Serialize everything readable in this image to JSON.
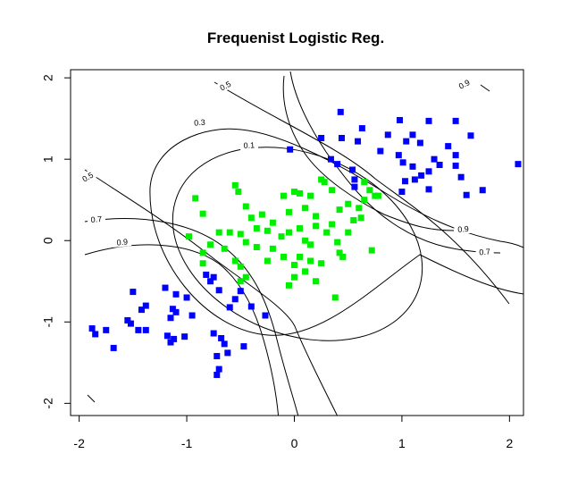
{
  "chart_data": {
    "type": "scatter",
    "title": "Frequenist Logistic Reg.",
    "xlabel": "",
    "ylabel": "",
    "xlim": [
      -2.08,
      2.13
    ],
    "ylim": [
      -2.15,
      2.1
    ],
    "xticks": [
      -2,
      -1,
      0,
      1,
      2
    ],
    "yticks": [
      -2,
      -1,
      0,
      1,
      2
    ],
    "xtick_labels": [
      "-2",
      "-1",
      "0",
      "1",
      "2"
    ],
    "ytick_labels": [
      "-2",
      "-1",
      "0",
      "1",
      "2"
    ],
    "grid": false,
    "legend": "none",
    "colors": {
      "class_blue": "#0000ff",
      "class_green": "#00ee00",
      "contour": "#000000"
    },
    "contour_labels": [
      {
        "text": "0.1",
        "x": -0.42,
        "y": 1.17,
        "rot": -3
      },
      {
        "text": "0.3",
        "x": -0.88,
        "y": 1.45,
        "rot": -5
      },
      {
        "text": "0.5",
        "x": -0.64,
        "y": 1.9,
        "rot": -28
      },
      {
        "text": "0.5",
        "x": -1.92,
        "y": 0.78,
        "rot": -30
      },
      {
        "text": "0.7",
        "x": -1.84,
        "y": 0.26,
        "rot": -5
      },
      {
        "text": "0.9",
        "x": -1.6,
        "y": -0.02,
        "rot": -5
      },
      {
        "text": "0.9",
        "x": 1.58,
        "y": 1.92,
        "rot": -28
      },
      {
        "text": "0.9",
        "x": 1.57,
        "y": 0.14,
        "rot": -5
      },
      {
        "text": "0.7",
        "x": 1.77,
        "y": -0.14,
        "rot": -5
      }
    ],
    "series": [
      {
        "color": "blue",
        "points": [
          [
            0.43,
            1.58
          ],
          [
            0.63,
            1.38
          ],
          [
            0.98,
            1.48
          ],
          [
            0.25,
            1.26
          ],
          [
            0.44,
            1.26
          ],
          [
            0.59,
            1.22
          ],
          [
            0.87,
            1.3
          ],
          [
            1.1,
            1.3
          ],
          [
            1.25,
            1.47
          ],
          [
            1.5,
            1.47
          ],
          [
            1.64,
            1.29
          ],
          [
            1.04,
            1.22
          ],
          [
            1.17,
            1.2
          ],
          [
            1.43,
            1.16
          ],
          [
            0.8,
            1.1
          ],
          [
            0.97,
            1.05
          ],
          [
            1.5,
            1.05
          ],
          [
            0.34,
            1
          ],
          [
            0.4,
            0.94
          ],
          [
            0.54,
            0.87
          ],
          [
            1.01,
            0.96
          ],
          [
            1.1,
            0.91
          ],
          [
            1.3,
            1.0
          ],
          [
            1.35,
            0.93
          ],
          [
            1.25,
            0.85
          ],
          [
            1.03,
            0.73
          ],
          [
            1.12,
            0.75
          ],
          [
            1.18,
            0.8
          ],
          [
            1.5,
            0.92
          ],
          [
            1.55,
            0.78
          ],
          [
            2.08,
            0.94
          ],
          [
            0.56,
            0.75
          ],
          [
            0.56,
            0.66
          ],
          [
            1.0,
            0.6
          ],
          [
            1.25,
            0.63
          ],
          [
            1.6,
            0.56
          ],
          [
            1.75,
            0.62
          ],
          [
            -0.04,
            1.12
          ],
          [
            -0.82,
            -0.42
          ],
          [
            -0.75,
            -0.45
          ],
          [
            -0.78,
            -0.5
          ],
          [
            -0.7,
            -0.61
          ],
          [
            -0.55,
            -0.72
          ],
          [
            -0.6,
            -0.82
          ],
          [
            -0.5,
            -0.62
          ],
          [
            -0.4,
            -0.81
          ],
          [
            -0.27,
            -0.92
          ],
          [
            -1.2,
            -0.58
          ],
          [
            -1.1,
            -0.66
          ],
          [
            -1.5,
            -0.63
          ],
          [
            -1.38,
            -0.8
          ],
          [
            -1.42,
            -0.85
          ],
          [
            -1.0,
            -0.7
          ],
          [
            -1.13,
            -0.84
          ],
          [
            -1.1,
            -0.88
          ],
          [
            -1.15,
            -0.95
          ],
          [
            -0.95,
            -0.92
          ],
          [
            -1.55,
            -0.98
          ],
          [
            -1.52,
            -1.02
          ],
          [
            -1.75,
            -1.1
          ],
          [
            -1.88,
            -1.08
          ],
          [
            -1.85,
            -1.15
          ],
          [
            -1.45,
            -1.1
          ],
          [
            -1.38,
            -1.1
          ],
          [
            -1.18,
            -1.17
          ],
          [
            -1.12,
            -1.21
          ],
          [
            -1.15,
            -1.25
          ],
          [
            -1.02,
            -1.18
          ],
          [
            -0.75,
            -1.14
          ],
          [
            -0.68,
            -1.2
          ],
          [
            -0.65,
            -1.27
          ],
          [
            -1.68,
            -1.32
          ],
          [
            -0.72,
            -1.42
          ],
          [
            -0.62,
            -1.38
          ],
          [
            -0.47,
            -1.3
          ],
          [
            -0.7,
            -1.58
          ],
          [
            -0.72,
            -1.65
          ]
        ]
      },
      {
        "color": "green",
        "points": [
          [
            -0.55,
            0.68
          ],
          [
            -0.52,
            0.6
          ],
          [
            -0.45,
            0.42
          ],
          [
            -0.92,
            0.52
          ],
          [
            -0.85,
            0.33
          ],
          [
            -0.1,
            0.55
          ],
          [
            0.0,
            0.6
          ],
          [
            0.05,
            0.58
          ],
          [
            0.15,
            0.55
          ],
          [
            0.25,
            0.75
          ],
          [
            0.28,
            0.72
          ],
          [
            0.35,
            0.62
          ],
          [
            0.7,
            0.62
          ],
          [
            0.65,
            0.5
          ],
          [
            0.75,
            0.55
          ],
          [
            0.6,
            0.4
          ],
          [
            0.62,
            0.28
          ],
          [
            -0.4,
            0.28
          ],
          [
            -0.3,
            0.32
          ],
          [
            -0.2,
            0.22
          ],
          [
            -0.05,
            0.35
          ],
          [
            0.1,
            0.4
          ],
          [
            0.2,
            0.3
          ],
          [
            0.42,
            0.38
          ],
          [
            0.5,
            0.45
          ],
          [
            -0.7,
            0.1
          ],
          [
            -0.6,
            0.1
          ],
          [
            -0.5,
            0.08
          ],
          [
            -0.35,
            0.15
          ],
          [
            -0.25,
            0.12
          ],
          [
            -0.05,
            0.1
          ],
          [
            0.05,
            0.15
          ],
          [
            0.2,
            0.18
          ],
          [
            0.3,
            0.1
          ],
          [
            0.35,
            0.2
          ],
          [
            0.55,
            0.25
          ],
          [
            -0.98,
            0.05
          ],
          [
            -0.78,
            -0.05
          ],
          [
            -0.65,
            -0.1
          ],
          [
            -0.45,
            -0.02
          ],
          [
            -0.35,
            -0.08
          ],
          [
            -0.2,
            -0.1
          ],
          [
            -0.12,
            0.05
          ],
          [
            0.1,
            0.0
          ],
          [
            0.15,
            -0.05
          ],
          [
            0.4,
            -0.02
          ],
          [
            0.5,
            0.1
          ],
          [
            0.72,
            -0.12
          ],
          [
            -0.85,
            -0.15
          ],
          [
            -0.55,
            -0.25
          ],
          [
            -0.5,
            -0.32
          ],
          [
            -0.25,
            -0.25
          ],
          [
            -0.1,
            -0.2
          ],
          [
            0.05,
            -0.2
          ],
          [
            0.15,
            -0.25
          ],
          [
            0.25,
            -0.28
          ],
          [
            0.42,
            -0.15
          ],
          [
            0.45,
            -0.2
          ],
          [
            -0.45,
            -0.45
          ],
          [
            -0.5,
            -0.5
          ],
          [
            0.0,
            -0.3
          ],
          [
            0.0,
            -0.45
          ],
          [
            0.1,
            -0.38
          ],
          [
            0.2,
            -0.5
          ],
          [
            -0.05,
            -0.55
          ],
          [
            0.38,
            -0.7
          ],
          [
            0.65,
            0.72
          ],
          [
            0.78,
            0.55
          ],
          [
            -0.85,
            -0.28
          ]
        ]
      }
    ]
  }
}
